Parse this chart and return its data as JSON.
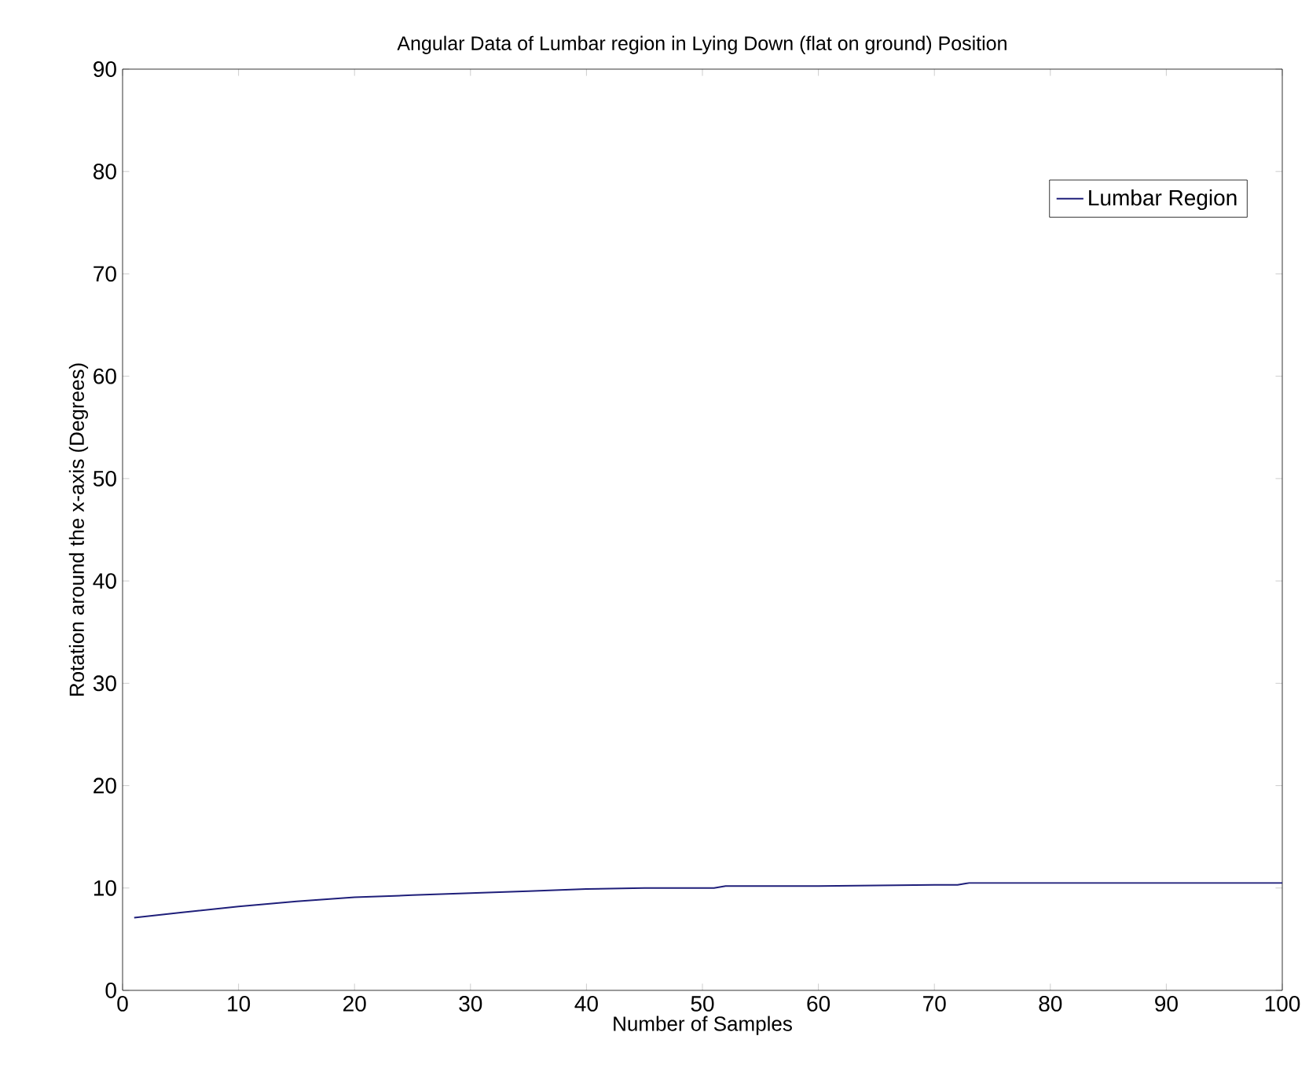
{
  "chart_data": {
    "type": "line",
    "title": "Angular Data of Lumbar region in Lying Down (flat on ground) Position",
    "xlabel": "Number of Samples",
    "ylabel": "Rotation around the x-axis (Degrees)",
    "xlim": [
      0,
      100
    ],
    "ylim": [
      0,
      90
    ],
    "xticks": [
      0,
      10,
      20,
      30,
      40,
      50,
      60,
      70,
      80,
      90,
      100
    ],
    "yticks": [
      0,
      10,
      20,
      30,
      40,
      50,
      60,
      70,
      80,
      90
    ],
    "legend": "top right",
    "grid": false,
    "series": [
      {
        "name": "Lumbar Region",
        "color": "#1f1f7a",
        "x": [
          1,
          5,
          10,
          15,
          20,
          25,
          30,
          35,
          40,
          45,
          50,
          51,
          52,
          60,
          70,
          72,
          73,
          80,
          90,
          100
        ],
        "values": [
          7.1,
          7.6,
          8.2,
          8.7,
          9.1,
          9.3,
          9.5,
          9.7,
          9.9,
          10.0,
          10.0,
          10.0,
          10.2,
          10.2,
          10.3,
          10.3,
          10.5,
          10.5,
          10.5,
          10.5
        ]
      }
    ]
  }
}
